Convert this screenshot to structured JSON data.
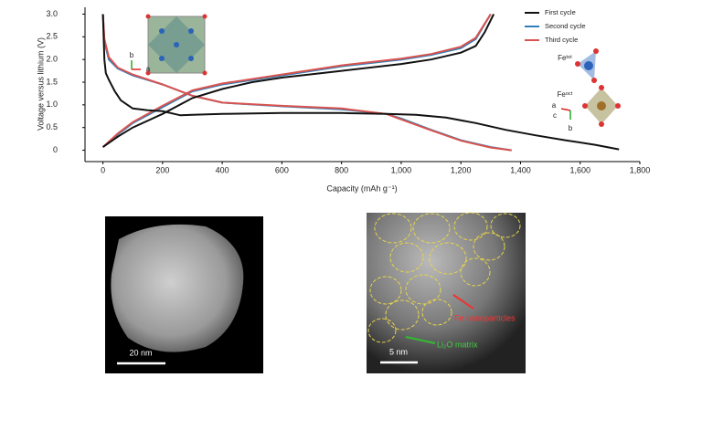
{
  "chart_data": {
    "type": "line",
    "x_label": "Capacity (mAh g⁻¹)",
    "y_label": "Voltage versus lithium (V)",
    "xlim": [
      -60,
      1800
    ],
    "ylim": [
      -0.25,
      3.15
    ],
    "xticks": [
      0,
      200,
      400,
      600,
      800,
      {
        "value": 1000,
        "label": "1,000"
      },
      {
        "value": 1200,
        "label": "1,200"
      },
      {
        "value": 1400,
        "label": "1,400"
      },
      {
        "value": 1600,
        "label": "1,600"
      },
      {
        "value": 1800,
        "label": "1,800"
      }
    ],
    "yticks": [
      0,
      0.5,
      {
        "value": 1,
        "label": "1.0"
      },
      1.5,
      {
        "value": 2,
        "label": "2.0"
      },
      2.5,
      {
        "value": 3,
        "label": "3.0"
      }
    ],
    "legend": "top-right",
    "series": [
      {
        "name": "First cycle",
        "color": "#111111",
        "x": [
          0,
          5,
          10,
          20,
          40,
          60,
          100,
          150,
          200,
          240,
          260,
          300,
          400,
          600,
          800,
          950,
          1050,
          1150,
          1250,
          1350,
          1450,
          1550,
          1650,
          1730,
          null,
          0,
          50,
          100,
          200,
          300,
          400,
          500,
          600,
          800,
          1000,
          1100,
          1200,
          1250,
          1280,
          1310
        ],
        "values": [
          3.0,
          2.0,
          1.7,
          1.55,
          1.3,
          1.1,
          0.92,
          0.88,
          0.86,
          0.8,
          0.77,
          0.78,
          0.8,
          0.82,
          0.82,
          0.8,
          0.78,
          0.72,
          0.6,
          0.45,
          0.33,
          0.22,
          0.12,
          0.02,
          null,
          0.07,
          0.3,
          0.5,
          0.8,
          1.15,
          1.35,
          1.5,
          1.6,
          1.75,
          1.9,
          2.0,
          2.15,
          2.3,
          2.6,
          3.0
        ]
      },
      {
        "name": "Second cycle",
        "color": "#2f7fb8",
        "x": [
          0,
          5,
          20,
          50,
          100,
          200,
          300,
          400,
          600,
          800,
          950,
          1000,
          1100,
          1200,
          1300,
          1370,
          null,
          0,
          50,
          100,
          200,
          300,
          400,
          600,
          800,
          1000,
          1100,
          1200,
          1250,
          1300
        ],
        "values": [
          3.0,
          2.4,
          2.0,
          1.8,
          1.65,
          1.45,
          1.2,
          1.05,
          0.97,
          0.9,
          0.8,
          0.7,
          0.45,
          0.22,
          0.07,
          0.0,
          null,
          0.07,
          0.35,
          0.6,
          0.95,
          1.3,
          1.45,
          1.65,
          1.85,
          2.0,
          2.1,
          2.25,
          2.45,
          3.0
        ]
      },
      {
        "name": "Third cycle",
        "color": "#d9534f",
        "x": [
          0,
          5,
          20,
          50,
          100,
          200,
          300,
          400,
          600,
          800,
          950,
          1000,
          1100,
          1200,
          1300,
          1370,
          null,
          0,
          50,
          100,
          200,
          300,
          400,
          600,
          800,
          1000,
          1100,
          1200,
          1250,
          1300
        ],
        "values": [
          3.0,
          2.45,
          2.05,
          1.82,
          1.67,
          1.45,
          1.2,
          1.05,
          0.98,
          0.92,
          0.8,
          0.68,
          0.44,
          0.21,
          0.06,
          0.0,
          null,
          0.07,
          0.37,
          0.62,
          0.98,
          1.32,
          1.47,
          1.67,
          1.87,
          2.02,
          2.12,
          2.28,
          2.48,
          3.0
        ]
      }
    ],
    "annotations": [
      "b",
      "a",
      "Feᵗᵉᵗ",
      "Feᵒᶜᵗ",
      "a",
      "c",
      "b"
    ]
  },
  "images": [
    {
      "scale_bar": "20 nm"
    },
    {
      "scale_bar": "5 nm",
      "labels": [
        "Fe nanoparticles",
        "Li₂O matrix"
      ]
    }
  ]
}
